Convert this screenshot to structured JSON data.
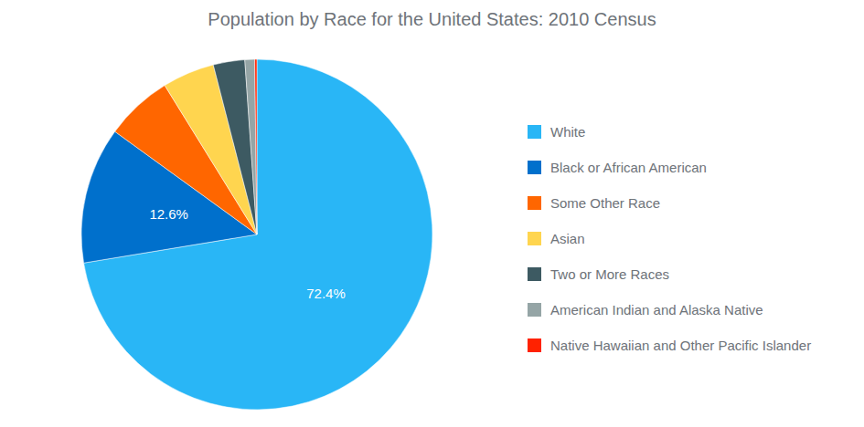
{
  "chart_data": {
    "type": "pie",
    "title": "Population by Race for the United States: 2010 Census",
    "categories": [
      "White",
      "Black or African American",
      "Some Other Race",
      "Asian",
      "Two or More Races",
      "American Indian and Alaska Native",
      "Native Hawaiian and Other Pacific Islander"
    ],
    "values": [
      72.4,
      12.6,
      6.2,
      4.8,
      2.9,
      0.9,
      0.2
    ],
    "value_labels": [
      "72.4%",
      "12.6%",
      null,
      null,
      null,
      null,
      null
    ],
    "colors": [
      "#29b6f6",
      "#0070cc",
      "#ff6600",
      "#ffd54f",
      "#3d5a62",
      "#95a5a6",
      "#ff2200"
    ],
    "data_labels": true,
    "legend": "right"
  }
}
